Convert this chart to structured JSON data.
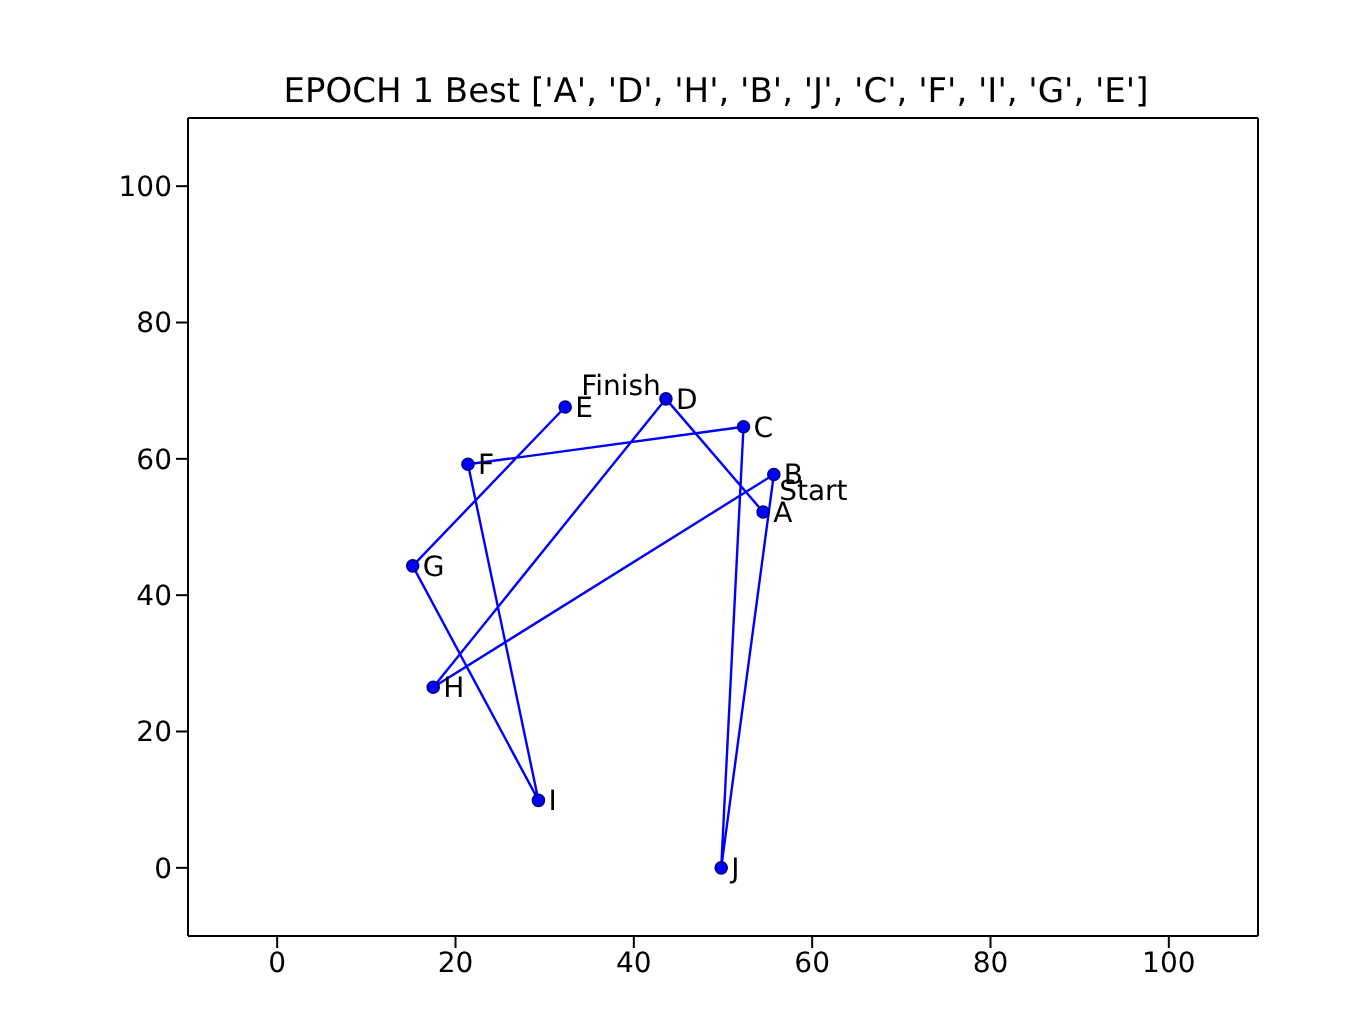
{
  "chart_data": {
    "type": "line",
    "title": "EPOCH 1 Best ['A', 'D', 'H', 'B', 'J', 'C', 'F', 'I', 'G', 'E']",
    "series": [
      {
        "color": "#0000ff",
        "x": [
          54.5,
          43.6,
          17.5,
          55.7,
          49.8,
          52.3,
          21.4,
          29.3,
          15.2,
          32.3
        ],
        "values": [
          52.2,
          68.8,
          26.5,
          57.7,
          0,
          64.7,
          59.2,
          9.9,
          44.3,
          67.6
        ]
      }
    ],
    "marker": "circle",
    "line_style": "solid",
    "grid": false,
    "xlim": [
      -10,
      110
    ],
    "xticks": [
      0,
      20,
      40,
      60,
      80,
      100
    ],
    "ylim": [
      -10,
      110
    ],
    "yticks": [
      0,
      20,
      40,
      60,
      80,
      100
    ],
    "annotations": [
      {
        "text": "A",
        "x": 54.5,
        "y": 52.2
      },
      {
        "text": "D",
        "x": 43.6,
        "y": 68.8
      },
      {
        "text": "H",
        "x": 17.5,
        "y": 26.5
      },
      {
        "text": "B",
        "x": 55.7,
        "y": 57.7
      },
      {
        "text": "J",
        "x": 49.8,
        "y": 0
      },
      {
        "text": "C",
        "x": 52.3,
        "y": 64.7
      },
      {
        "text": "F",
        "x": 21.4,
        "y": 59.2
      },
      {
        "text": "I",
        "x": 29.3,
        "y": 9.9
      },
      {
        "text": "G",
        "x": 15.2,
        "y": 44.3
      },
      {
        "text": "E",
        "x": 32.3,
        "y": 67.6
      },
      {
        "text": "Start",
        "x": 54.5,
        "y": 52.2
      },
      {
        "text": "Finish",
        "x": 32.3,
        "y": 67.6
      }
    ]
  }
}
